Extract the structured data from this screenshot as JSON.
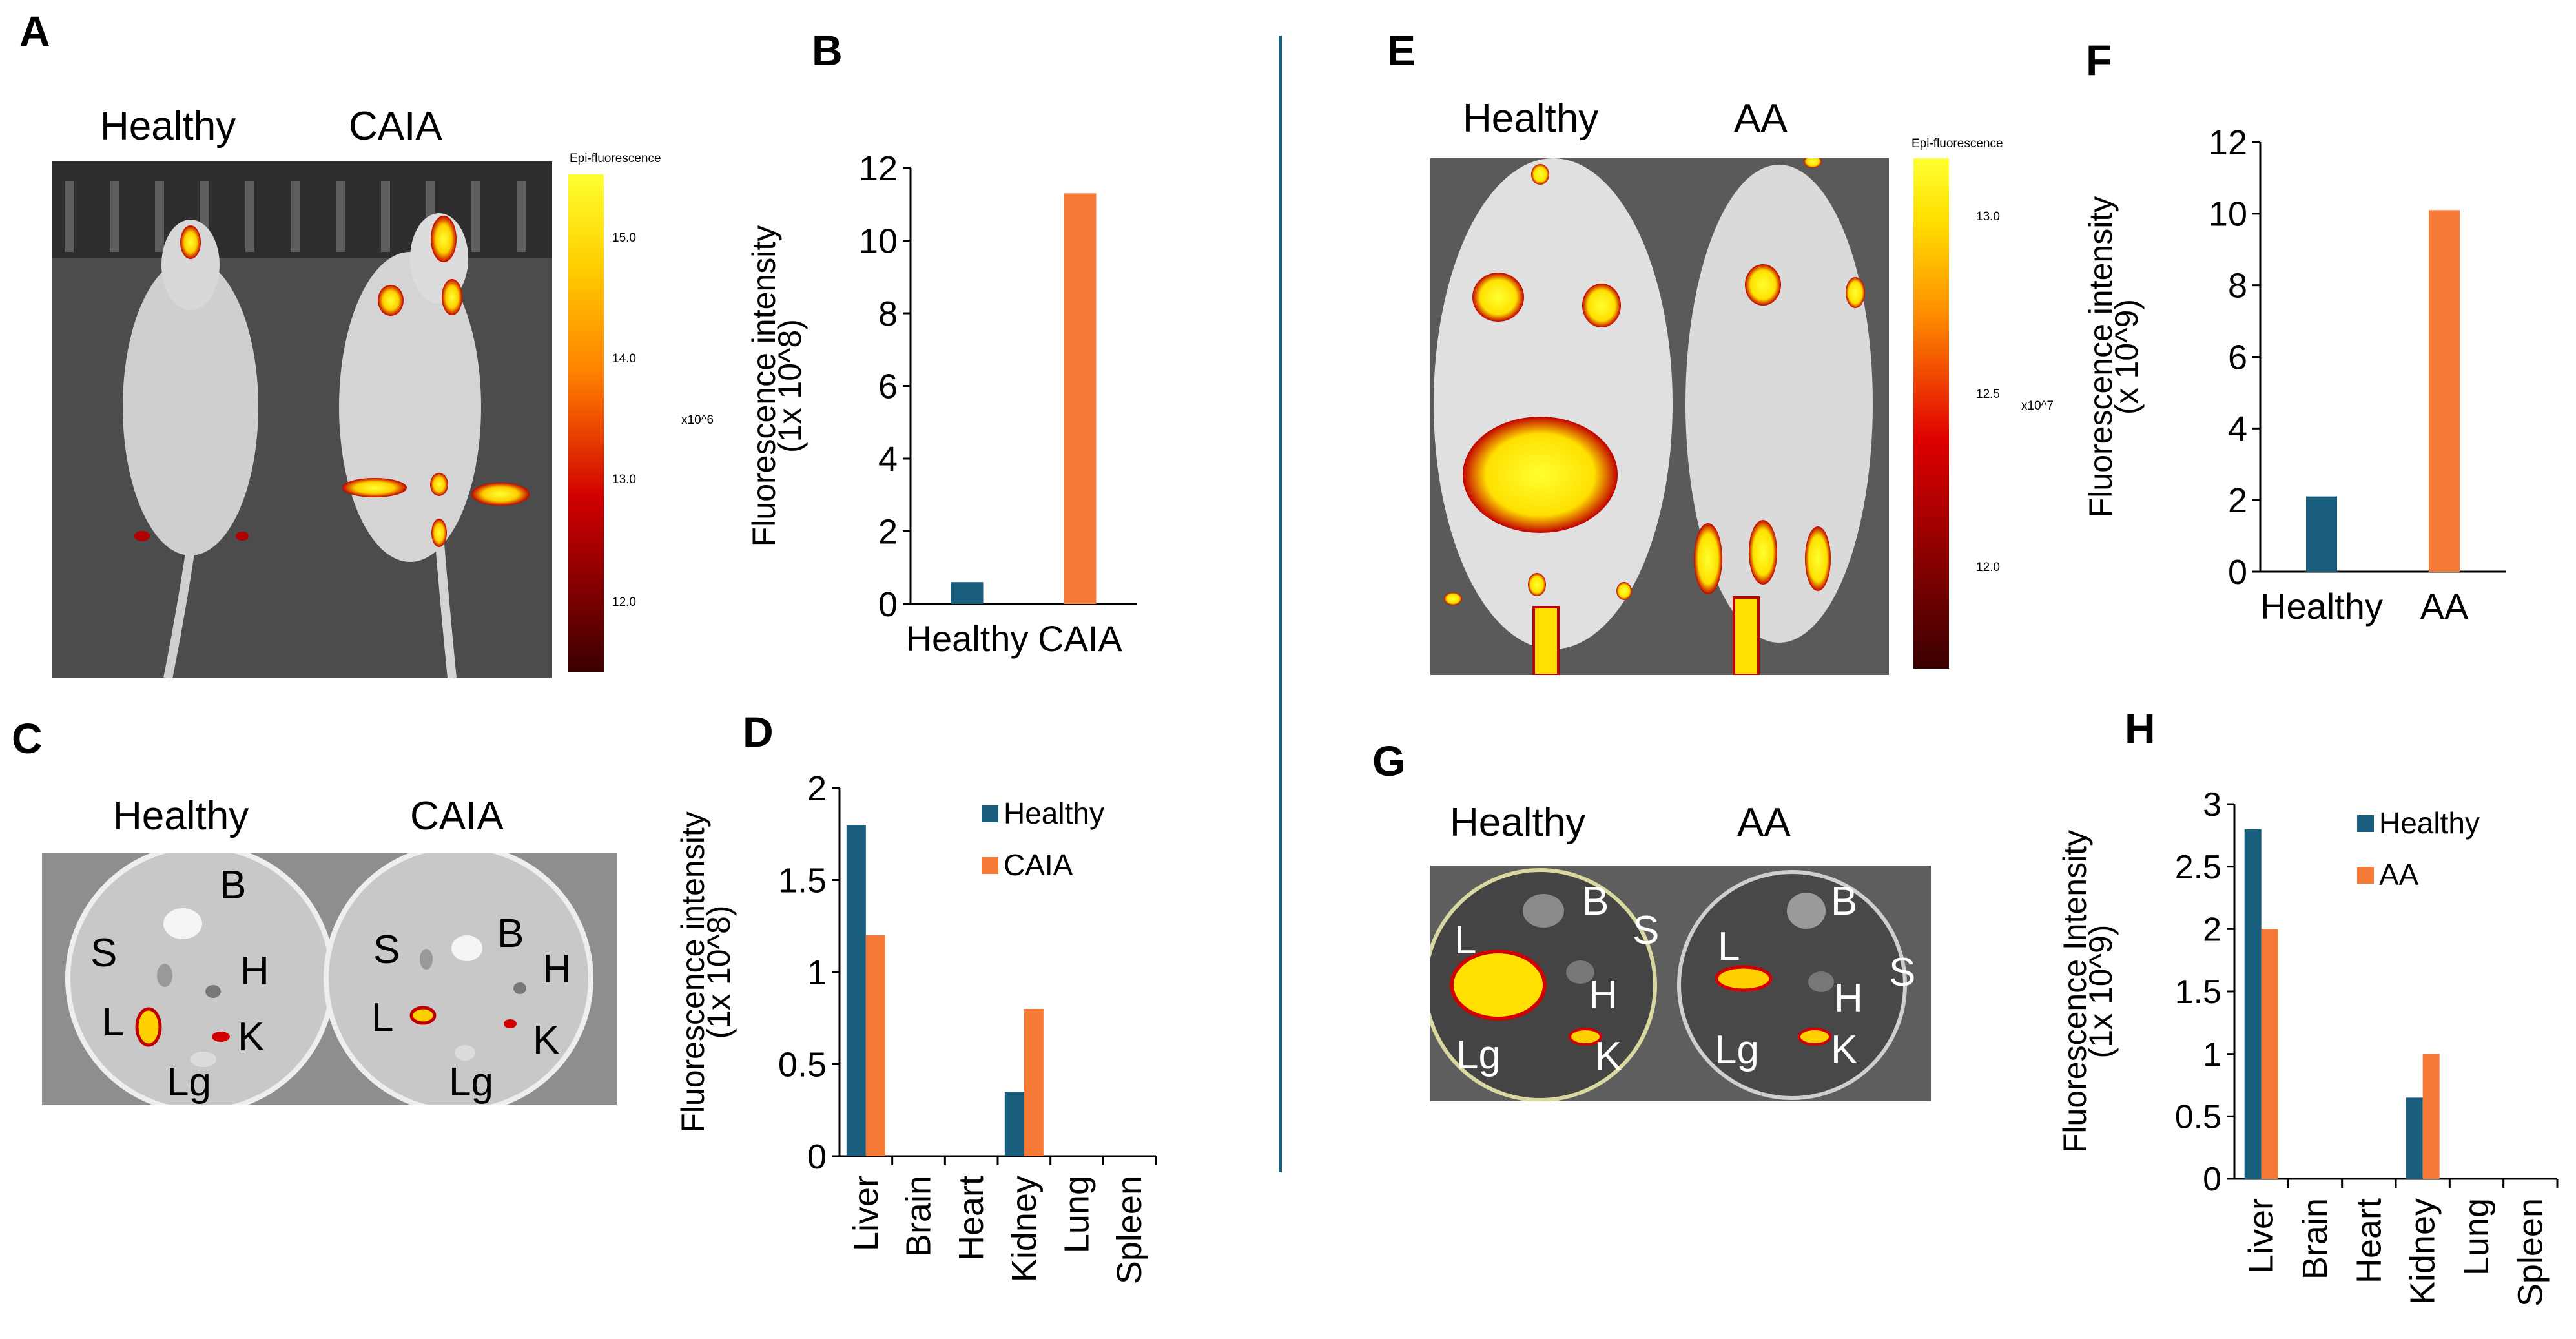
{
  "panels": {
    "A": {
      "letter": "A",
      "labels": [
        "Healthy",
        "CAIA"
      ],
      "scale": {
        "title": "Epi-fluorescence",
        "unit": "x10^6",
        "ticks": [
          "15.0",
          "14.0",
          "13.0",
          "12.0"
        ]
      }
    },
    "C": {
      "letter": "C",
      "labels": [
        "Healthy",
        "CAIA"
      ],
      "organ_labels": [
        "B",
        "S",
        "H",
        "L",
        "K",
        "Lg"
      ]
    },
    "E": {
      "letter": "E",
      "labels": [
        "Healthy",
        "AA"
      ],
      "scale": {
        "title": "Epi-fluorescence",
        "unit": "x10^7",
        "ticks": [
          "13.0",
          "12.5",
          "12.0"
        ]
      }
    },
    "G": {
      "letter": "G",
      "labels": [
        "Healthy",
        "AA"
      ],
      "organ_labels": [
        "L",
        "B",
        "S",
        "H",
        "K",
        "Lg"
      ]
    }
  },
  "chart_data": [
    {
      "id": "B",
      "letter": "B",
      "type": "bar",
      "categories": [
        "Healthy",
        "CAIA"
      ],
      "values": [
        0.6,
        11.3
      ],
      "colors": [
        "#1a5e7e",
        "#f57b36"
      ],
      "ylabel_lines": [
        "Fluorescence intensity",
        "(1x 10^8)"
      ],
      "ylim": [
        0,
        12
      ],
      "yticks": [
        0,
        2,
        4,
        6,
        8,
        10,
        12
      ]
    },
    {
      "id": "D",
      "letter": "D",
      "type": "bar",
      "categories": [
        "Liver",
        "Brain",
        "Heart",
        "Kidney",
        "Lung",
        "Spleen"
      ],
      "series": [
        {
          "name": "Healthy",
          "color": "#1a5e7e",
          "values": [
            1.8,
            0,
            0,
            0.35,
            0,
            0
          ]
        },
        {
          "name": "CAIA",
          "color": "#f57b36",
          "values": [
            1.2,
            0,
            0,
            0.8,
            0,
            0
          ]
        }
      ],
      "ylabel_lines": [
        "Fluorescence intensity",
        "(1x 10^8)"
      ],
      "ylim": [
        0,
        2
      ],
      "yticks": [
        "0",
        "0.5",
        "1",
        "1.5",
        "2"
      ],
      "legend": "top-right"
    },
    {
      "id": "F",
      "letter": "F",
      "type": "bar",
      "categories": [
        "Healthy",
        "AA"
      ],
      "values": [
        2.1,
        10.1
      ],
      "colors": [
        "#1a5e7e",
        "#f57b36"
      ],
      "ylabel_lines": [
        "Fluorescence intensity",
        "(x 10^9)"
      ],
      "ylim": [
        0,
        12
      ],
      "yticks": [
        0,
        2,
        4,
        6,
        8,
        10,
        12
      ]
    },
    {
      "id": "H",
      "letter": "H",
      "type": "bar",
      "categories": [
        "Liver",
        "Brain",
        "Heart",
        "Kidney",
        "Lung",
        "Spleen"
      ],
      "series": [
        {
          "name": "Healthy",
          "color": "#1a5e7e",
          "values": [
            2.8,
            0,
            0,
            0.65,
            0,
            0
          ]
        },
        {
          "name": "AA",
          "color": "#f57b36",
          "values": [
            2.0,
            0,
            0,
            1.0,
            0,
            0
          ]
        }
      ],
      "ylabel_lines": [
        "Fluorescence Intensity",
        "(1x 10^9)"
      ],
      "ylim": [
        0,
        3
      ],
      "yticks": [
        "0",
        "0.5",
        "1",
        "1.5",
        "2",
        "2.5",
        "3"
      ],
      "legend": "top-right"
    }
  ]
}
